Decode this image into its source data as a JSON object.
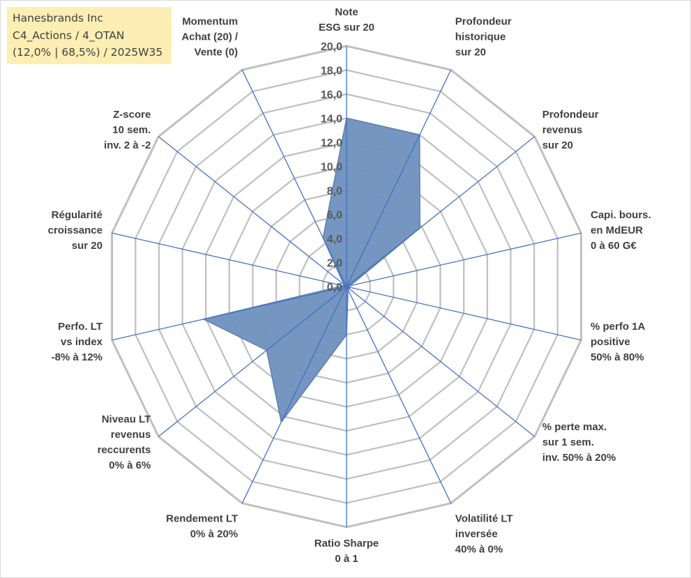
{
  "title_lines": [
    "Hanesbrands Inc",
    "C4_Actions / 4_OTAN",
    "(12,0% | 68,5%) / 2025W35"
  ],
  "chart_data": {
    "type": "radar",
    "rmin": 0,
    "rmax": 20,
    "grid_rings": 10,
    "tick_labels": [
      "0,0",
      "2,0",
      "4,0",
      "6,0",
      "8,0",
      "10,0",
      "12,0",
      "14,0",
      "16,0",
      "18,0",
      "20,0"
    ],
    "tick_values": [
      0,
      2,
      4,
      6,
      8,
      10,
      12,
      14,
      16,
      18,
      20
    ],
    "axes": [
      {
        "label": [
          "Note",
          "ESG sur 20"
        ],
        "value": 14.0
      },
      {
        "label": [
          "Profondeur",
          "historique",
          "sur 20"
        ],
        "value": 14.0
      },
      {
        "label": [
          "Profondeur",
          "revenus",
          "sur 20"
        ],
        "value": 7.8
      },
      {
        "label": [
          "Capi. bours.",
          "en MdEUR",
          "0 à 60 G€"
        ],
        "value": 0.3
      },
      {
        "label": [
          "% perfo 1A",
          "positive",
          "50% à 80%"
        ],
        "value": 0.3
      },
      {
        "label": [
          "% perte max.",
          "sur 1 sem.",
          "inv. 50% à 20%"
        ],
        "value": 0.3
      },
      {
        "label": [
          "Volatilité LT",
          "inversée",
          "40% à 0%"
        ],
        "value": 0.3
      },
      {
        "label": [
          "Ratio Sharpe",
          "0 à 1"
        ],
        "value": 4.0
      },
      {
        "label": [
          "Rendement LT",
          "0% à 20%"
        ],
        "value": 12.5
      },
      {
        "label": [
          "Niveau LT",
          "revenus",
          "reccurents",
          "0% à 6%"
        ],
        "value": 8.5
      },
      {
        "label": [
          "Perfo. LT",
          "vs index",
          "-8% à 12%"
        ],
        "value": 12.2
      },
      {
        "label": [
          "Régularité",
          "croissance",
          "sur 20"
        ],
        "value": 0.3
      },
      {
        "label": [
          "Z-score",
          "10 sem.",
          "inv. 2 à -2"
        ],
        "value": 0.3
      },
      {
        "label": [
          "Momentum",
          "Achat (20) /",
          "Vente (0)"
        ],
        "value": 4.5
      }
    ],
    "colors": {
      "fill": "#6e90bd",
      "stroke": "#5b7fb0",
      "spoke": "#4472c4",
      "grid": "#bfbfbf"
    }
  }
}
